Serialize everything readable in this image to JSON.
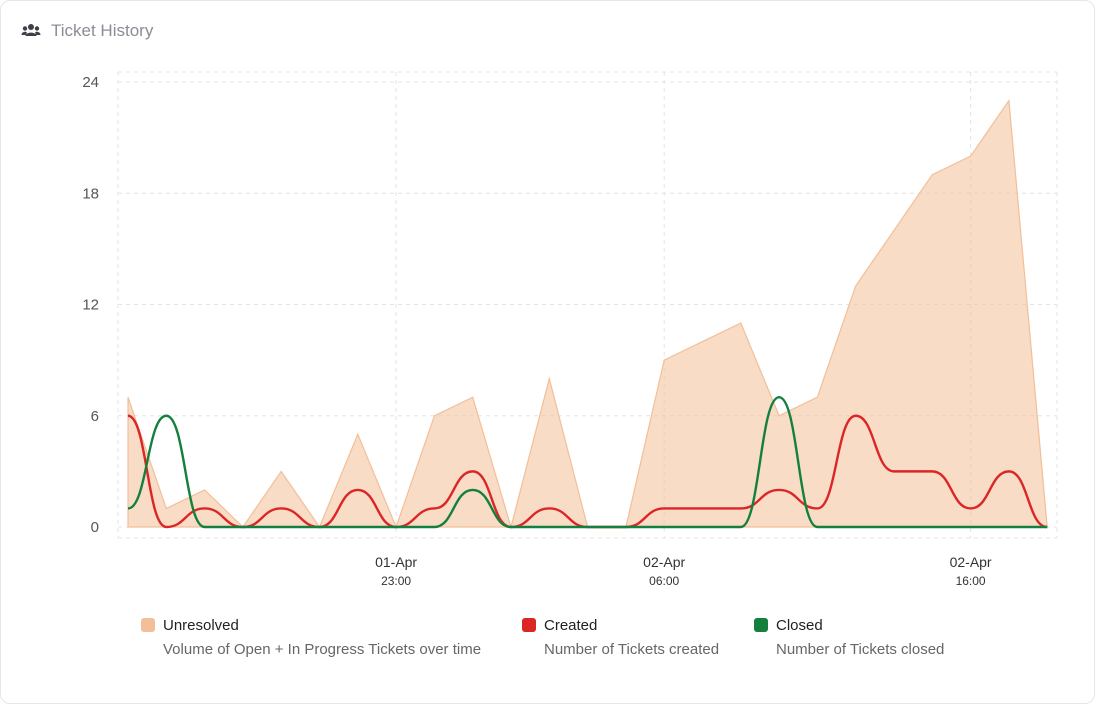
{
  "header": {
    "title": "Ticket History",
    "icon": "users-icon"
  },
  "chart_data": {
    "type": "area",
    "title": "",
    "xlabel": "",
    "ylabel": "",
    "ylim": [
      0,
      24
    ],
    "y_ticks": [
      "0",
      "6",
      "12",
      "18",
      "24"
    ],
    "x_ticks": [
      {
        "date": "01-Apr",
        "time": "23:00",
        "index": 7
      },
      {
        "date": "02-Apr",
        "time": "06:00",
        "index": 14
      },
      {
        "date": "02-Apr",
        "time": "16:00",
        "index": 22
      }
    ],
    "grid": true,
    "legend_position": "bottom",
    "series": [
      {
        "name": "Unresolved",
        "description": "Volume of Open + In Progress Tickets over time",
        "kind": "area",
        "color": "#f2bf98",
        "values": [
          7,
          1,
          2,
          0,
          3,
          0,
          5,
          0,
          6,
          7,
          0,
          8,
          0,
          0,
          9,
          10,
          11,
          6,
          7,
          13,
          16,
          19,
          20,
          23,
          0
        ]
      },
      {
        "name": "Created",
        "description": "Number of Tickets created",
        "kind": "line",
        "color": "#dc2626",
        "values": [
          6,
          0,
          1,
          0,
          1,
          0,
          2,
          0,
          1,
          3,
          0,
          1,
          0,
          0,
          1,
          1,
          1,
          2,
          1,
          6,
          3,
          3,
          1,
          3,
          0
        ]
      },
      {
        "name": "Closed",
        "description": "Number of Tickets closed",
        "kind": "line",
        "color": "#15803d",
        "values": [
          1,
          6,
          0,
          0,
          0,
          0,
          0,
          0,
          0,
          2,
          0,
          0,
          0,
          0,
          0,
          0,
          0,
          7,
          0,
          0,
          0,
          0,
          0,
          0,
          0
        ]
      }
    ]
  }
}
